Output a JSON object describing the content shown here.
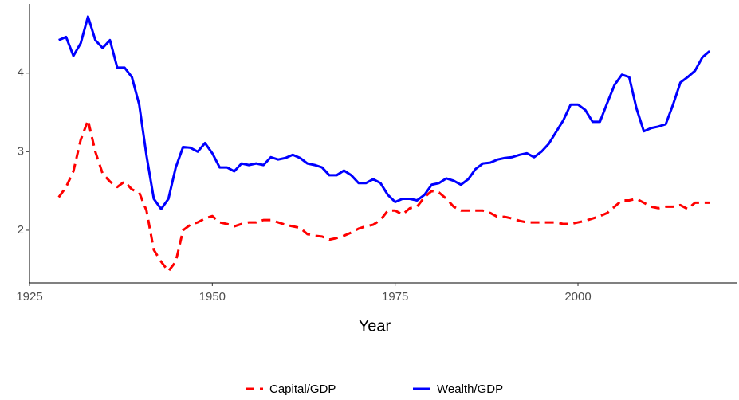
{
  "chart_data": {
    "type": "line",
    "xlabel": "Year",
    "x": [
      1929,
      1930,
      1931,
      1932,
      1933,
      1934,
      1935,
      1936,
      1937,
      1938,
      1939,
      1940,
      1941,
      1942,
      1943,
      1944,
      1945,
      1946,
      1947,
      1948,
      1949,
      1950,
      1951,
      1952,
      1953,
      1954,
      1955,
      1956,
      1957,
      1958,
      1959,
      1960,
      1961,
      1962,
      1963,
      1964,
      1965,
      1966,
      1967,
      1968,
      1969,
      1970,
      1971,
      1972,
      1973,
      1974,
      1975,
      1976,
      1977,
      1978,
      1979,
      1980,
      1981,
      1982,
      1983,
      1984,
      1985,
      1986,
      1987,
      1988,
      1989,
      1990,
      1991,
      1992,
      1993,
      1994,
      1995,
      1996,
      1997,
      1998,
      1999,
      2000,
      2001,
      2002,
      2003,
      2004,
      2005,
      2006,
      2007,
      2008,
      2009,
      2010,
      2011,
      2012,
      2013,
      2014,
      2015,
      2016,
      2017,
      2018
    ],
    "series": [
      {
        "name": "Capital/GDP",
        "color": "#ff0000",
        "dashed": true,
        "values": [
          2.42,
          2.55,
          2.75,
          3.15,
          3.4,
          3.0,
          2.72,
          2.62,
          2.55,
          2.62,
          2.52,
          2.48,
          2.25,
          1.75,
          1.6,
          1.48,
          1.6,
          2.0,
          2.07,
          2.1,
          2.15,
          2.18,
          2.1,
          2.08,
          2.05,
          2.08,
          2.1,
          2.1,
          2.13,
          2.13,
          2.1,
          2.07,
          2.05,
          2.03,
          1.95,
          1.93,
          1.92,
          1.88,
          1.9,
          1.93,
          1.97,
          2.02,
          2.05,
          2.07,
          2.13,
          2.25,
          2.25,
          2.2,
          2.28,
          2.3,
          2.42,
          2.5,
          2.48,
          2.4,
          2.3,
          2.25,
          2.25,
          2.25,
          2.25,
          2.22,
          2.17,
          2.17,
          2.15,
          2.12,
          2.1,
          2.1,
          2.1,
          2.1,
          2.1,
          2.08,
          2.08,
          2.1,
          2.12,
          2.15,
          2.18,
          2.22,
          2.3,
          2.38,
          2.38,
          2.4,
          2.35,
          2.3,
          2.28,
          2.3,
          2.3,
          2.32,
          2.27,
          2.35,
          2.35,
          2.35
        ]
      },
      {
        "name": "Wealth/GDP",
        "color": "#0000ff",
        "dashed": false,
        "values": [
          4.42,
          4.46,
          4.22,
          4.38,
          4.72,
          4.42,
          4.32,
          4.42,
          4.07,
          4.07,
          3.95,
          3.6,
          2.95,
          2.4,
          2.27,
          2.4,
          2.8,
          3.06,
          3.05,
          3.0,
          3.11,
          2.98,
          2.8,
          2.8,
          2.75,
          2.85,
          2.83,
          2.85,
          2.83,
          2.93,
          2.9,
          2.92,
          2.96,
          2.92,
          2.85,
          2.83,
          2.8,
          2.7,
          2.7,
          2.76,
          2.7,
          2.6,
          2.6,
          2.65,
          2.6,
          2.45,
          2.36,
          2.4,
          2.4,
          2.38,
          2.45,
          2.58,
          2.6,
          2.66,
          2.63,
          2.58,
          2.65,
          2.78,
          2.85,
          2.86,
          2.9,
          2.92,
          2.93,
          2.96,
          2.98,
          2.93,
          3.0,
          3.1,
          3.25,
          3.4,
          3.6,
          3.6,
          3.53,
          3.38,
          3.38,
          3.62,
          3.85,
          3.98,
          3.95,
          3.55,
          3.26,
          3.3,
          3.32,
          3.35,
          3.6,
          3.88,
          3.95,
          4.03,
          4.2,
          4.28
        ]
      }
    ],
    "xlim": [
      1925,
      2021.8
    ],
    "xticks": [
      1925,
      1950,
      1975,
      2000
    ],
    "ylim": [
      1.33,
      4.88
    ],
    "yticks": [
      2,
      3,
      4
    ],
    "grid": false,
    "legend": "bottom"
  }
}
